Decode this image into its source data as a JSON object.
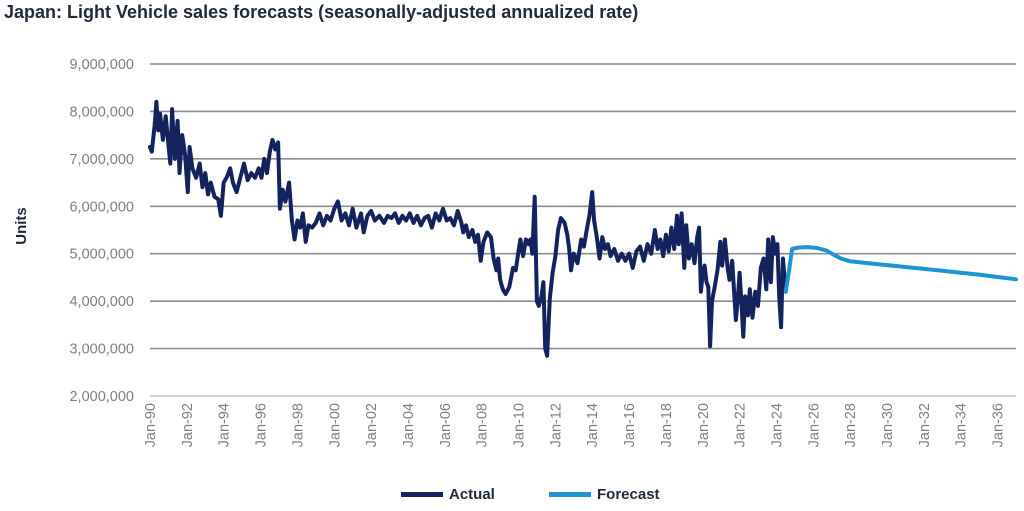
{
  "chart_data": {
    "type": "line",
    "title": "Japan: Light Vehicle sales forecasts (seasonally-adjusted annualized rate)",
    "ylabel": "Units",
    "ylim": [
      2000000,
      9000000
    ],
    "yticks": [
      "2,000,000",
      "3,000,000",
      "4,000,000",
      "5,000,000",
      "6,000,000",
      "7,000,000",
      "8,000,000",
      "9,000,000"
    ],
    "xlim": [
      1990.0,
      2037.0
    ],
    "xticks": [
      "Jan-90",
      "Jan-92",
      "Jan-94",
      "Jan-96",
      "Jan-98",
      "Jan-00",
      "Jan-02",
      "Jan-04",
      "Jan-06",
      "Jan-08",
      "Jan-10",
      "Jan-12",
      "Jan-14",
      "Jan-16",
      "Jan-18",
      "Jan-20",
      "Jan-22",
      "Jan-24",
      "Jan-26",
      "Jan-28",
      "Jan-30",
      "Jan-32",
      "Jan-34",
      "Jan-36"
    ],
    "grid": true,
    "legend": "bottom",
    "series": [
      {
        "name": "Actual",
        "color": "#14235e",
        "points": [
          [
            1990.0,
            7250000
          ],
          [
            1990.1,
            7150000
          ],
          [
            1990.25,
            7700000
          ],
          [
            1990.35,
            8200000
          ],
          [
            1990.45,
            7600000
          ],
          [
            1990.55,
            7950000
          ],
          [
            1990.7,
            7400000
          ],
          [
            1990.85,
            7900000
          ],
          [
            1991.0,
            7300000
          ],
          [
            1991.1,
            6900000
          ],
          [
            1991.2,
            8050000
          ],
          [
            1991.35,
            7000000
          ],
          [
            1991.5,
            7800000
          ],
          [
            1991.6,
            6700000
          ],
          [
            1991.75,
            7500000
          ],
          [
            1991.9,
            7100000
          ],
          [
            1992.05,
            6300000
          ],
          [
            1992.15,
            7250000
          ],
          [
            1992.3,
            6800000
          ],
          [
            1992.5,
            6600000
          ],
          [
            1992.7,
            6900000
          ],
          [
            1992.85,
            6400000
          ],
          [
            1993.0,
            6700000
          ],
          [
            1993.15,
            6250000
          ],
          [
            1993.3,
            6500000
          ],
          [
            1993.5,
            6200000
          ],
          [
            1993.7,
            6150000
          ],
          [
            1993.85,
            5800000
          ],
          [
            1994.0,
            6500000
          ],
          [
            1994.15,
            6600000
          ],
          [
            1994.35,
            6800000
          ],
          [
            1994.5,
            6500000
          ],
          [
            1994.7,
            6300000
          ],
          [
            1994.9,
            6600000
          ],
          [
            1995.1,
            6900000
          ],
          [
            1995.3,
            6550000
          ],
          [
            1995.5,
            6700000
          ],
          [
            1995.7,
            6600000
          ],
          [
            1995.9,
            6800000
          ],
          [
            1996.05,
            6600000
          ],
          [
            1996.2,
            7000000
          ],
          [
            1996.35,
            6700000
          ],
          [
            1996.5,
            7150000
          ],
          [
            1996.65,
            7400000
          ],
          [
            1996.8,
            7200000
          ],
          [
            1996.95,
            7350000
          ],
          [
            1997.05,
            5950000
          ],
          [
            1997.2,
            6350000
          ],
          [
            1997.35,
            6100000
          ],
          [
            1997.55,
            6500000
          ],
          [
            1997.7,
            5700000
          ],
          [
            1997.85,
            5300000
          ],
          [
            1998.0,
            5700000
          ],
          [
            1998.15,
            5550000
          ],
          [
            1998.3,
            5850000
          ],
          [
            1998.45,
            5250000
          ],
          [
            1998.6,
            5600000
          ],
          [
            1998.8,
            5550000
          ],
          [
            1999.0,
            5650000
          ],
          [
            1999.2,
            5850000
          ],
          [
            1999.4,
            5600000
          ],
          [
            1999.6,
            5800000
          ],
          [
            1999.8,
            5700000
          ],
          [
            2000.0,
            5950000
          ],
          [
            2000.2,
            6100000
          ],
          [
            2000.4,
            5700000
          ],
          [
            2000.6,
            5850000
          ],
          [
            2000.8,
            5600000
          ],
          [
            2001.0,
            5950000
          ],
          [
            2001.2,
            5550000
          ],
          [
            2001.45,
            5850000
          ],
          [
            2001.6,
            5450000
          ],
          [
            2001.8,
            5800000
          ],
          [
            2002.0,
            5900000
          ],
          [
            2002.2,
            5700000
          ],
          [
            2002.45,
            5800000
          ],
          [
            2002.7,
            5650000
          ],
          [
            2002.9,
            5800000
          ],
          [
            2003.1,
            5750000
          ],
          [
            2003.3,
            5850000
          ],
          [
            2003.5,
            5650000
          ],
          [
            2003.7,
            5800000
          ],
          [
            2003.9,
            5700000
          ],
          [
            2004.1,
            5850000
          ],
          [
            2004.3,
            5650000
          ],
          [
            2004.5,
            5800000
          ],
          [
            2004.7,
            5600000
          ],
          [
            2004.9,
            5750000
          ],
          [
            2005.1,
            5800000
          ],
          [
            2005.3,
            5550000
          ],
          [
            2005.5,
            5850000
          ],
          [
            2005.7,
            5700000
          ],
          [
            2005.9,
            5950000
          ],
          [
            2006.1,
            5700000
          ],
          [
            2006.3,
            5750000
          ],
          [
            2006.5,
            5600000
          ],
          [
            2006.7,
            5900000
          ],
          [
            2006.9,
            5650000
          ],
          [
            2007.0,
            5450000
          ],
          [
            2007.15,
            5600000
          ],
          [
            2007.3,
            5350000
          ],
          [
            2007.5,
            5500000
          ],
          [
            2007.65,
            5250000
          ],
          [
            2007.8,
            5400000
          ],
          [
            2007.95,
            4850000
          ],
          [
            2008.1,
            5250000
          ],
          [
            2008.3,
            5450000
          ],
          [
            2008.5,
            5350000
          ],
          [
            2008.65,
            4900000
          ],
          [
            2008.8,
            4650000
          ],
          [
            2008.9,
            4900000
          ],
          [
            2009.0,
            4450000
          ],
          [
            2009.15,
            4250000
          ],
          [
            2009.3,
            4150000
          ],
          [
            2009.5,
            4300000
          ],
          [
            2009.7,
            4700000
          ],
          [
            2009.85,
            4650000
          ],
          [
            2010.0,
            5050000
          ],
          [
            2010.1,
            5300000
          ],
          [
            2010.25,
            4950000
          ],
          [
            2010.4,
            5300000
          ],
          [
            2010.55,
            5200000
          ],
          [
            2010.65,
            5300000
          ],
          [
            2010.75,
            5000000
          ],
          [
            2010.88,
            6200000
          ],
          [
            2011.0,
            4000000
          ],
          [
            2011.1,
            3900000
          ],
          [
            2011.25,
            4100000
          ],
          [
            2011.35,
            4400000
          ],
          [
            2011.45,
            3000000
          ],
          [
            2011.55,
            2850000
          ],
          [
            2011.7,
            4050000
          ],
          [
            2011.85,
            4600000
          ],
          [
            2012.0,
            4950000
          ],
          [
            2012.15,
            5500000
          ],
          [
            2012.3,
            5750000
          ],
          [
            2012.5,
            5650000
          ],
          [
            2012.65,
            5400000
          ],
          [
            2012.75,
            5100000
          ],
          [
            2012.85,
            4650000
          ],
          [
            2013.0,
            5000000
          ],
          [
            2013.2,
            4800000
          ],
          [
            2013.4,
            5300000
          ],
          [
            2013.55,
            5150000
          ],
          [
            2013.7,
            5500000
          ],
          [
            2013.85,
            5800000
          ],
          [
            2014.0,
            6300000
          ],
          [
            2014.1,
            5700000
          ],
          [
            2014.25,
            5350000
          ],
          [
            2014.4,
            4900000
          ],
          [
            2014.55,
            5350000
          ],
          [
            2014.7,
            5100000
          ],
          [
            2014.85,
            5200000
          ],
          [
            2015.0,
            4950000
          ],
          [
            2015.2,
            5100000
          ],
          [
            2015.4,
            4850000
          ],
          [
            2015.6,
            5000000
          ],
          [
            2015.8,
            4850000
          ],
          [
            2016.0,
            5000000
          ],
          [
            2016.2,
            4700000
          ],
          [
            2016.4,
            5050000
          ],
          [
            2016.6,
            5150000
          ],
          [
            2016.8,
            4850000
          ],
          [
            2017.0,
            5200000
          ],
          [
            2017.2,
            5000000
          ],
          [
            2017.4,
            5500000
          ],
          [
            2017.55,
            5100000
          ],
          [
            2017.7,
            5300000
          ],
          [
            2017.85,
            4950000
          ],
          [
            2018.0,
            5400000
          ],
          [
            2018.15,
            5050000
          ],
          [
            2018.3,
            5550000
          ],
          [
            2018.45,
            5100000
          ],
          [
            2018.6,
            5800000
          ],
          [
            2018.7,
            5200000
          ],
          [
            2018.85,
            5850000
          ],
          [
            2019.0,
            4700000
          ],
          [
            2019.1,
            5600000
          ],
          [
            2019.25,
            4900000
          ],
          [
            2019.4,
            5200000
          ],
          [
            2019.55,
            4800000
          ],
          [
            2019.7,
            5350000
          ],
          [
            2019.8,
            5550000
          ],
          [
            2019.9,
            4200000
          ],
          [
            2020.0,
            4600000
          ],
          [
            2020.1,
            4750000
          ],
          [
            2020.2,
            4400000
          ],
          [
            2020.3,
            4300000
          ],
          [
            2020.4,
            3050000
          ],
          [
            2020.5,
            4000000
          ],
          [
            2020.65,
            4300000
          ],
          [
            2020.8,
            4650000
          ],
          [
            2020.95,
            5250000
          ],
          [
            2021.05,
            4750000
          ],
          [
            2021.2,
            5300000
          ],
          [
            2021.35,
            4700000
          ],
          [
            2021.45,
            4450000
          ],
          [
            2021.6,
            4850000
          ],
          [
            2021.7,
            4200000
          ],
          [
            2021.8,
            3600000
          ],
          [
            2021.9,
            4050000
          ],
          [
            2022.0,
            4600000
          ],
          [
            2022.1,
            3950000
          ],
          [
            2022.2,
            3250000
          ],
          [
            2022.3,
            4100000
          ],
          [
            2022.45,
            3700000
          ],
          [
            2022.55,
            4250000
          ],
          [
            2022.7,
            3650000
          ],
          [
            2022.85,
            4200000
          ],
          [
            2023.0,
            3900000
          ],
          [
            2023.15,
            4700000
          ],
          [
            2023.3,
            4900000
          ],
          [
            2023.45,
            4250000
          ],
          [
            2023.55,
            5300000
          ],
          [
            2023.7,
            4400000
          ],
          [
            2023.8,
            5350000
          ],
          [
            2023.95,
            5000000
          ],
          [
            2024.05,
            5200000
          ],
          [
            2024.15,
            4100000
          ],
          [
            2024.25,
            3450000
          ],
          [
            2024.35,
            4900000
          ],
          [
            2024.5,
            4200000
          ]
        ]
      },
      {
        "name": "Forecast",
        "color": "#1f94d2",
        "points": [
          [
            2024.5,
            4200000
          ],
          [
            2024.7,
            4700000
          ],
          [
            2024.85,
            5100000
          ],
          [
            2025.2,
            5130000
          ],
          [
            2025.7,
            5140000
          ],
          [
            2026.2,
            5120000
          ],
          [
            2026.7,
            5070000
          ],
          [
            2027.1,
            4980000
          ],
          [
            2027.5,
            4900000
          ],
          [
            2028.0,
            4840000
          ],
          [
            2029.0,
            4800000
          ],
          [
            2030.0,
            4760000
          ],
          [
            2031.0,
            4720000
          ],
          [
            2032.0,
            4680000
          ],
          [
            2033.0,
            4640000
          ],
          [
            2034.0,
            4600000
          ],
          [
            2035.0,
            4560000
          ],
          [
            2036.0,
            4510000
          ],
          [
            2037.0,
            4460000
          ]
        ]
      }
    ]
  }
}
